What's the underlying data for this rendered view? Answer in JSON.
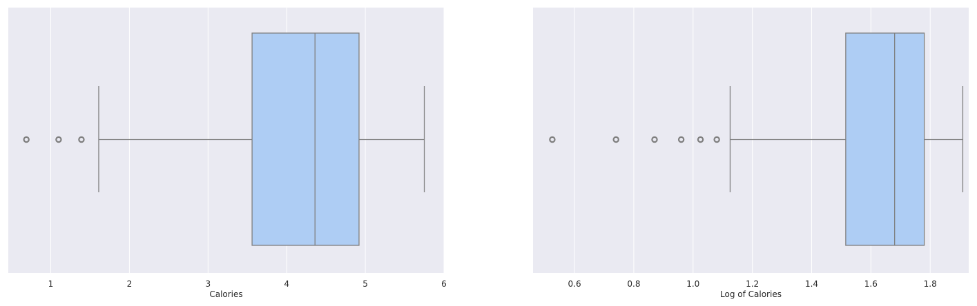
{
  "colors": {
    "plot_background": "#eaeaf2",
    "grid": "#ffffff",
    "box_fill": "#aecdf4",
    "box_line": "#7f7f7f"
  },
  "chart_data": [
    {
      "type": "boxplot",
      "orientation": "horizontal",
      "xlabel": "Calories",
      "xlim": [
        0.46,
        6.0
      ],
      "xticks": [
        1,
        2,
        3,
        4,
        5,
        6
      ],
      "xtick_labels": [
        "1",
        "2",
        "3",
        "4",
        "5",
        "6"
      ],
      "grid": true,
      "box": {
        "whisker_low": 1.61,
        "q1": 3.56,
        "median": 4.36,
        "q3": 4.92,
        "whisker_high": 5.75
      },
      "outliers": [
        0.69,
        1.1,
        1.39
      ]
    },
    {
      "type": "boxplot",
      "orientation": "horizontal",
      "xlabel": "Log of Calories",
      "xlim": [
        0.46,
        1.93
      ],
      "xticks": [
        0.6,
        0.8,
        1.0,
        1.2,
        1.4,
        1.6,
        1.8
      ],
      "xtick_labels": [
        "0.6",
        "0.8",
        "1.0",
        "1.2",
        "1.4",
        "1.6",
        "1.8"
      ],
      "grid": true,
      "box": {
        "whisker_low": 1.125,
        "q1": 1.515,
        "median": 1.68,
        "q3": 1.78,
        "whisker_high": 1.91
      },
      "outliers": [
        0.525,
        0.74,
        0.87,
        0.96,
        1.025,
        1.08
      ]
    }
  ]
}
